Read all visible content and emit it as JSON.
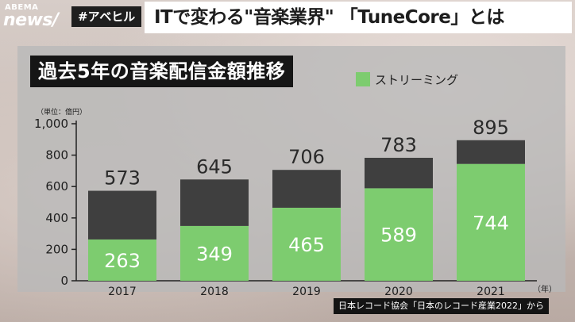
{
  "header": {
    "logo_top": "ABEMA",
    "logo_main": "news/",
    "hashtag": "#アベヒル",
    "headline": "ITで変わる\"音楽業界\" 「TuneCore」とは"
  },
  "chart_data": {
    "type": "bar",
    "title": "過去5年の音楽配信金額推移",
    "unit_label": "（単位：億円）",
    "x_unit_label": "（年）",
    "categories": [
      "2017",
      "2018",
      "2019",
      "2020",
      "2021"
    ],
    "series": [
      {
        "name": "ストリーミング",
        "values": [
          263,
          349,
          465,
          589,
          744
        ],
        "color": "#7dcc6f"
      },
      {
        "values": [
          310,
          296,
          241,
          194,
          151
        ],
        "color": "#3f3f3f"
      }
    ],
    "totals": [
      "573",
      "645",
      "706",
      "783",
      "895"
    ],
    "stack_labels": [
      "263",
      "349",
      "465",
      "589",
      "744"
    ],
    "yticks": [
      "0",
      "200",
      "400",
      "600",
      "800",
      "1,000"
    ],
    "ylim": [
      0,
      1000
    ],
    "legend_position": "top-right",
    "grid": false
  },
  "source": "日本レコード協会「日本のレコード産業2022」から"
}
